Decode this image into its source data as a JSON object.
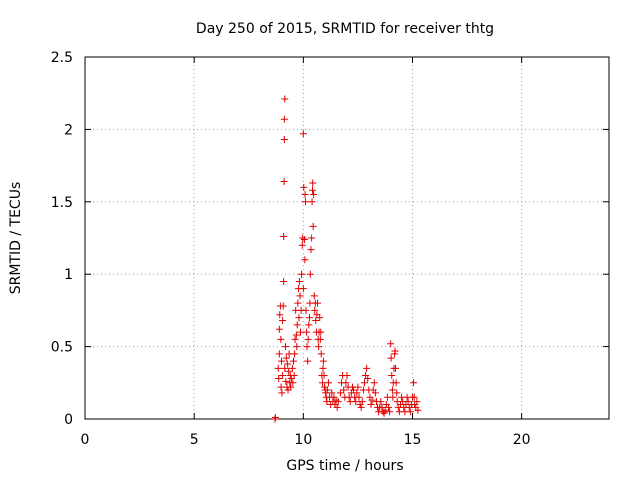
{
  "chart_data": {
    "type": "scatter",
    "title": "Day 250 of 2015, SRMTID for receiver thtg",
    "xlabel": "GPS time / hours",
    "ylabel": "SRMTID / TECUs",
    "xlim": [
      0,
      24
    ],
    "ylim": [
      0,
      2.5
    ],
    "xticks": [
      0,
      5,
      10,
      15,
      20
    ],
    "yticks": [
      0,
      0.5,
      1,
      1.5,
      2,
      2.5
    ],
    "xtick_labels": [
      "0",
      "5",
      "10",
      "15",
      "20"
    ],
    "ytick_labels": [
      "0",
      "0.5",
      "1",
      "1.5",
      "2",
      "2.5"
    ],
    "grid": true,
    "marker": "plus",
    "series": [
      {
        "name": "SRMTID",
        "color": "#e00000",
        "points": [
          [
            8.7,
            0.0
          ],
          [
            8.72,
            0.01
          ],
          [
            8.85,
            0.35
          ],
          [
            8.87,
            0.28
          ],
          [
            8.9,
            0.45
          ],
          [
            8.9,
            0.62
          ],
          [
            8.92,
            0.72
          ],
          [
            8.95,
            0.78
          ],
          [
            8.97,
            0.55
          ],
          [
            8.98,
            0.22
          ],
          [
            9.0,
            0.4
          ],
          [
            9.02,
            0.18
          ],
          [
            9.05,
            0.3
          ],
          [
            9.05,
            0.68
          ],
          [
            9.08,
            0.78
          ],
          [
            9.1,
            0.95
          ],
          [
            9.1,
            1.26
          ],
          [
            9.12,
            1.64
          ],
          [
            9.13,
            1.93
          ],
          [
            9.13,
            2.07
          ],
          [
            9.15,
            2.21
          ],
          [
            9.15,
            0.35
          ],
          [
            9.18,
            0.5
          ],
          [
            9.2,
            0.26
          ],
          [
            9.22,
            0.42
          ],
          [
            9.25,
            0.22
          ],
          [
            9.28,
            0.38
          ],
          [
            9.3,
            0.2
          ],
          [
            9.33,
            0.33
          ],
          [
            9.35,
            0.45
          ],
          [
            9.38,
            0.25
          ],
          [
            9.4,
            0.3
          ],
          [
            9.42,
            0.22
          ],
          [
            9.45,
            0.28
          ],
          [
            9.5,
            0.35
          ],
          [
            9.52,
            0.25
          ],
          [
            9.55,
            0.4
          ],
          [
            9.58,
            0.3
          ],
          [
            9.6,
            0.45
          ],
          [
            9.62,
            0.55
          ],
          [
            9.65,
            0.75
          ],
          [
            9.68,
            0.58
          ],
          [
            9.7,
            0.5
          ],
          [
            9.72,
            0.65
          ],
          [
            9.75,
            0.8
          ],
          [
            9.78,
            0.9
          ],
          [
            9.8,
            0.7
          ],
          [
            9.82,
            0.95
          ],
          [
            9.85,
            0.85
          ],
          [
            9.87,
            0.6
          ],
          [
            9.9,
            0.75
          ],
          [
            9.92,
            1.0
          ],
          [
            9.95,
            1.2
          ],
          [
            9.97,
            1.25
          ],
          [
            10.0,
            0.9
          ],
          [
            10.0,
            1.97
          ],
          [
            10.02,
            1.6
          ],
          [
            10.05,
            1.24
          ],
          [
            10.07,
            1.1
          ],
          [
            10.08,
            1.55
          ],
          [
            10.1,
            1.5
          ],
          [
            10.12,
            0.75
          ],
          [
            10.15,
            0.6
          ],
          [
            10.17,
            0.5
          ],
          [
            10.2,
            0.4
          ],
          [
            10.22,
            0.55
          ],
          [
            10.25,
            0.65
          ],
          [
            10.28,
            0.7
          ],
          [
            10.3,
            0.8
          ],
          [
            10.32,
            1.0
          ],
          [
            10.35,
            1.17
          ],
          [
            10.38,
            1.25
          ],
          [
            10.4,
            1.5
          ],
          [
            10.42,
            1.58
          ],
          [
            10.43,
            1.63
          ],
          [
            10.45,
            1.33
          ],
          [
            10.47,
            1.55
          ],
          [
            10.5,
            0.85
          ],
          [
            10.52,
            0.75
          ],
          [
            10.55,
            0.8
          ],
          [
            10.57,
            0.68
          ],
          [
            10.6,
            0.6
          ],
          [
            10.62,
            0.72
          ],
          [
            10.65,
            0.8
          ],
          [
            10.68,
            0.55
          ],
          [
            10.7,
            0.5
          ],
          [
            10.72,
            0.6
          ],
          [
            10.75,
            0.7
          ],
          [
            10.78,
            0.55
          ],
          [
            10.8,
            0.6
          ],
          [
            10.82,
            0.45
          ],
          [
            10.85,
            0.3
          ],
          [
            10.88,
            0.25
          ],
          [
            10.9,
            0.35
          ],
          [
            10.92,
            0.4
          ],
          [
            10.95,
            0.3
          ],
          [
            10.97,
            0.22
          ],
          [
            11.0,
            0.2
          ],
          [
            11.02,
            0.18
          ],
          [
            11.05,
            0.15
          ],
          [
            11.08,
            0.12
          ],
          [
            11.1,
            0.2
          ],
          [
            11.15,
            0.25
          ],
          [
            11.2,
            0.15
          ],
          [
            11.25,
            0.1
          ],
          [
            11.3,
            0.18
          ],
          [
            11.35,
            0.12
          ],
          [
            11.4,
            0.15
          ],
          [
            11.45,
            0.1
          ],
          [
            11.5,
            0.13
          ],
          [
            11.55,
            0.08
          ],
          [
            11.6,
            0.12
          ],
          [
            11.7,
            0.18
          ],
          [
            11.75,
            0.25
          ],
          [
            11.8,
            0.3
          ],
          [
            11.85,
            0.2
          ],
          [
            11.9,
            0.15
          ],
          [
            11.95,
            0.25
          ],
          [
            12.0,
            0.3
          ],
          [
            12.05,
            0.22
          ],
          [
            12.1,
            0.15
          ],
          [
            12.15,
            0.12
          ],
          [
            12.2,
            0.18
          ],
          [
            12.25,
            0.22
          ],
          [
            12.3,
            0.2
          ],
          [
            12.35,
            0.15
          ],
          [
            12.4,
            0.12
          ],
          [
            12.45,
            0.18
          ],
          [
            12.5,
            0.22
          ],
          [
            12.55,
            0.15
          ],
          [
            12.6,
            0.1
          ],
          [
            12.65,
            0.08
          ],
          [
            12.7,
            0.12
          ],
          [
            12.75,
            0.2
          ],
          [
            12.8,
            0.25
          ],
          [
            12.85,
            0.3
          ],
          [
            12.9,
            0.35
          ],
          [
            12.95,
            0.28
          ],
          [
            13.0,
            0.2
          ],
          [
            13.05,
            0.15
          ],
          [
            13.1,
            0.1
          ],
          [
            13.15,
            0.13
          ],
          [
            13.2,
            0.2
          ],
          [
            13.25,
            0.25
          ],
          [
            13.3,
            0.18
          ],
          [
            13.35,
            0.12
          ],
          [
            13.4,
            0.08
          ],
          [
            13.45,
            0.05
          ],
          [
            13.5,
            0.08
          ],
          [
            13.55,
            0.12
          ],
          [
            13.6,
            0.08
          ],
          [
            13.65,
            0.05
          ],
          [
            13.7,
            0.04
          ],
          [
            13.75,
            0.06
          ],
          [
            13.8,
            0.1
          ],
          [
            13.85,
            0.15
          ],
          [
            13.9,
            0.08
          ],
          [
            13.95,
            0.05
          ],
          [
            14.0,
            0.52
          ],
          [
            14.02,
            0.42
          ],
          [
            14.05,
            0.3
          ],
          [
            14.08,
            0.2
          ],
          [
            14.1,
            0.15
          ],
          [
            14.12,
            0.25
          ],
          [
            14.15,
            0.35
          ],
          [
            14.18,
            0.45
          ],
          [
            14.2,
            0.47
          ],
          [
            14.22,
            0.35
          ],
          [
            14.25,
            0.25
          ],
          [
            14.28,
            0.18
          ],
          [
            14.3,
            0.12
          ],
          [
            14.35,
            0.08
          ],
          [
            14.4,
            0.05
          ],
          [
            14.45,
            0.1
          ],
          [
            14.5,
            0.15
          ],
          [
            14.55,
            0.12
          ],
          [
            14.6,
            0.08
          ],
          [
            14.65,
            0.05
          ],
          [
            14.7,
            0.1
          ],
          [
            14.75,
            0.15
          ],
          [
            14.8,
            0.12
          ],
          [
            14.85,
            0.08
          ],
          [
            14.9,
            0.05
          ],
          [
            14.95,
            0.1
          ],
          [
            15.0,
            0.15
          ],
          [
            15.05,
            0.25
          ],
          [
            15.08,
            0.15
          ],
          [
            15.1,
            0.1
          ],
          [
            15.15,
            0.08
          ],
          [
            15.2,
            0.12
          ],
          [
            15.25,
            0.06
          ]
        ]
      }
    ]
  }
}
